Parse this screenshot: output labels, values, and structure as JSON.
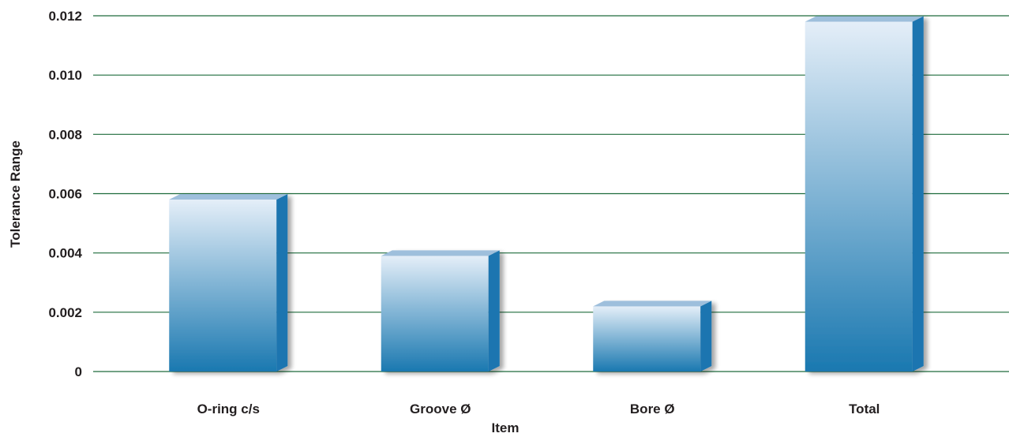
{
  "chart_data": {
    "type": "bar",
    "title": "",
    "xlabel": "Item",
    "ylabel": "Tolerance Range",
    "categories": [
      "O-ring c/s",
      "Groove Ø",
      "Bore Ø",
      "Total"
    ],
    "values": [
      0.0058,
      0.0039,
      0.0022,
      0.0118
    ],
    "ylim": [
      0,
      0.012
    ],
    "yticks": [
      "0",
      "0.002",
      "0.004",
      "0.006",
      "0.008",
      "0.010",
      "0.012"
    ],
    "grid": true,
    "legend": "none",
    "colors": {
      "grid": "#1e6b3c",
      "bar_top": "#e4eef8",
      "bar_bottom": "#1a78b0",
      "bar_side": "#1a75b0",
      "bar_cap": "#9ebfdc"
    }
  }
}
